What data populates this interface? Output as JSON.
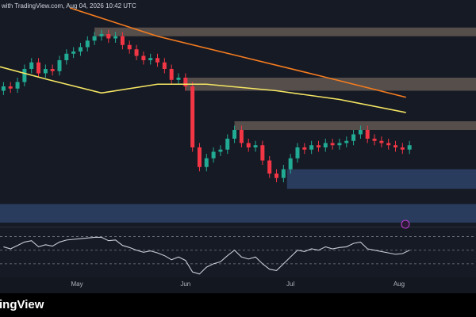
{
  "header": {
    "text": "with TradingView.com, Aug 04, 2026 10:42 UTC"
  },
  "logo": {
    "text": "ingView"
  },
  "chart_data": [
    {
      "type": "candlestick",
      "xlim": [
        99,
        235
      ],
      "ylim": [
        0,
        100
      ],
      "xticks": [
        {
          "value": 121,
          "label": "May"
        },
        {
          "value": 152,
          "label": "Jun"
        },
        {
          "value": 182,
          "label": "Jul"
        },
        {
          "value": 213,
          "label": "Aug"
        }
      ],
      "up_color": "#22ab94",
      "down_color": "#f23645",
      "x": [
        100,
        102,
        104,
        106,
        108,
        110,
        112,
        114,
        116,
        118,
        120,
        122,
        124,
        126,
        128,
        130,
        132,
        134,
        136,
        138,
        140,
        142,
        144,
        146,
        148,
        150,
        152,
        154,
        156,
        158,
        160,
        162,
        164,
        166,
        168,
        170,
        172,
        174,
        176,
        178,
        180,
        182,
        184,
        186,
        188,
        190,
        192,
        194,
        196,
        198,
        200,
        202,
        204,
        206,
        208,
        210,
        212,
        214,
        216
      ],
      "open": [
        62,
        64,
        63,
        66,
        72,
        75,
        70,
        72,
        71,
        76,
        79,
        80,
        82,
        85,
        87,
        88,
        86,
        87,
        83,
        81,
        78,
        76,
        77,
        75,
        72,
        67,
        68,
        64,
        36,
        27,
        31,
        34,
        35,
        40,
        44,
        38,
        36,
        37,
        30,
        24,
        22,
        26,
        31,
        36,
        35,
        37,
        36,
        38,
        37,
        38,
        39,
        42,
        44,
        40,
        39,
        38,
        37,
        36,
        35
      ],
      "high": [
        66,
        66,
        68,
        74,
        77,
        77,
        74,
        74,
        78,
        81,
        82,
        84,
        87,
        89,
        90,
        90,
        89,
        89,
        85,
        83,
        80,
        79,
        79,
        77,
        74,
        70,
        70,
        66,
        38,
        33,
        36,
        37,
        42,
        46,
        46,
        40,
        39,
        39,
        32,
        26,
        28,
        33,
        38,
        38,
        39,
        39,
        40,
        40,
        40,
        41,
        44,
        46,
        46,
        42,
        41,
        40,
        39,
        38,
        39
      ],
      "low": [
        60,
        61,
        61,
        64,
        70,
        68,
        68,
        69,
        69,
        74,
        77,
        78,
        80,
        83,
        85,
        84,
        84,
        81,
        79,
        76,
        74,
        74,
        73,
        70,
        65,
        65,
        62,
        34,
        25,
        25,
        29,
        32,
        33,
        38,
        36,
        34,
        34,
        28,
        22,
        20,
        20,
        24,
        29,
        33,
        33,
        34,
        34,
        35,
        35,
        36,
        37,
        40,
        38,
        37,
        36,
        35,
        34,
        33,
        33
      ],
      "close": [
        64,
        63,
        66,
        72,
        75,
        70,
        72,
        71,
        76,
        79,
        80,
        82,
        85,
        87,
        88,
        86,
        87,
        83,
        81,
        78,
        76,
        77,
        75,
        72,
        67,
        68,
        64,
        36,
        27,
        31,
        34,
        35,
        40,
        44,
        38,
        36,
        37,
        30,
        24,
        22,
        26,
        31,
        36,
        35,
        37,
        36,
        38,
        37,
        38,
        39,
        42,
        44,
        40,
        39,
        38,
        37,
        36,
        35,
        37
      ],
      "lines": [
        {
          "color": "#f57c1f",
          "x": [
            119,
            144,
            167,
            190,
            215
          ],
          "values": [
            100,
            87,
            78,
            69,
            59
          ]
        },
        {
          "color": "#f5e663",
          "x": [
            99,
            113,
            128,
            144,
            158,
            178,
            196,
            215
          ],
          "values": [
            73,
            67,
            61,
            65,
            65,
            62,
            58,
            52
          ]
        }
      ],
      "zones": [
        {
          "start": 126,
          "low": 87,
          "high": 91,
          "color": "#8a7a6a"
        },
        {
          "start": 152,
          "low": 62,
          "high": 68,
          "color": "#8a7a6a"
        },
        {
          "start": 166,
          "low": 44,
          "high": 48,
          "color": "#8a7a6a"
        },
        {
          "start": 181,
          "low": 17,
          "high": 26,
          "color": "#3d5a8c"
        },
        {
          "start": 99,
          "low": 1.5,
          "high": 10,
          "color": "#3d5a8c"
        }
      ]
    },
    {
      "type": "line",
      "ylim": [
        10,
        80
      ],
      "color": "#c8ccd6",
      "levels": [
        30,
        50,
        70
      ],
      "x": [
        100,
        102,
        104,
        106,
        108,
        110,
        112,
        114,
        116,
        118,
        120,
        122,
        124,
        126,
        128,
        130,
        132,
        134,
        136,
        138,
        140,
        142,
        144,
        146,
        148,
        150,
        152,
        154,
        156,
        158,
        160,
        162,
        164,
        166,
        168,
        170,
        172,
        174,
        176,
        178,
        180,
        182,
        184,
        186,
        188,
        190,
        192,
        194,
        196,
        198,
        200,
        202,
        204,
        206,
        208,
        210,
        212,
        214,
        216
      ],
      "values": [
        55,
        52,
        57,
        62,
        64,
        55,
        58,
        56,
        62,
        65,
        66,
        67,
        68,
        69,
        69,
        64,
        65,
        57,
        54,
        50,
        47,
        49,
        46,
        42,
        36,
        40,
        35,
        18,
        15,
        25,
        30,
        33,
        42,
        50,
        40,
        37,
        40,
        30,
        22,
        20,
        30,
        40,
        50,
        48,
        52,
        50,
        55,
        52,
        54,
        55,
        60,
        62,
        52,
        50,
        48,
        46,
        44,
        45,
        50
      ]
    }
  ]
}
